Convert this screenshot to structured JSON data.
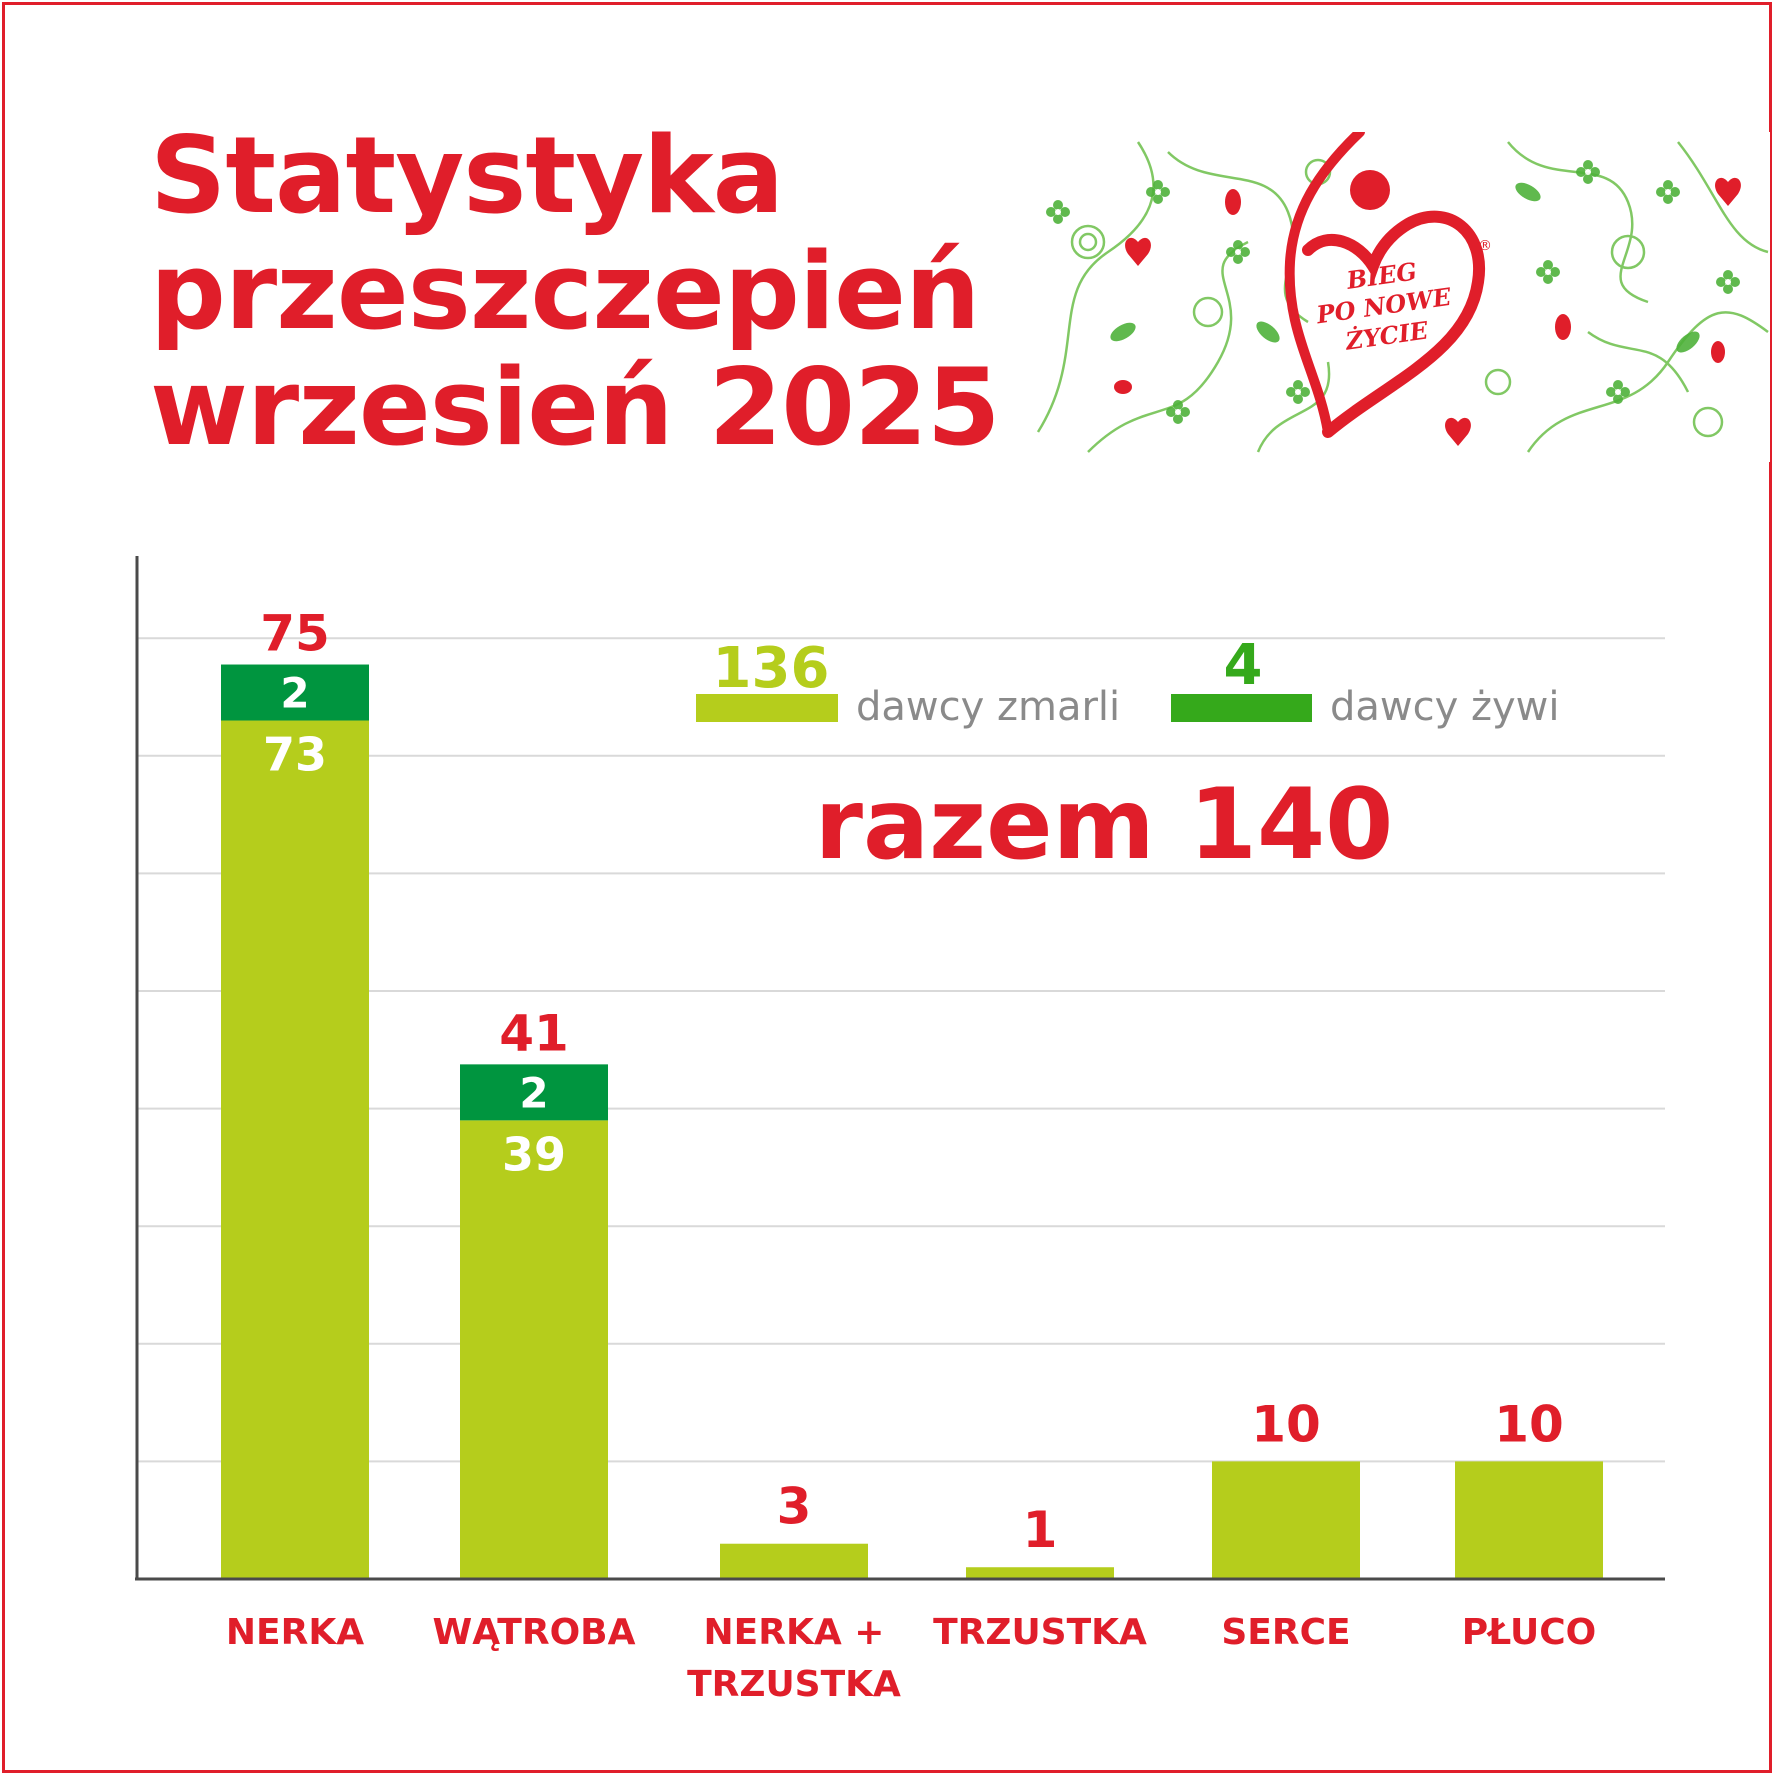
{
  "title": {
    "line1": "Statystyka",
    "line2": "przeszczepień",
    "line3": "wrzesień 2025"
  },
  "logo": {
    "line1": "BIEG",
    "line2": "PO NOWE",
    "line3": "ŻYCIE",
    "mark": "®"
  },
  "legend": {
    "deceased_count": "136",
    "deceased_label": "dawcy zmarli",
    "living_count": "4",
    "living_label": "dawcy żywi",
    "total": "razem 140"
  },
  "colors": {
    "accent": "#e01e2a",
    "deceased": "#b5cd1c",
    "living": "#00953f",
    "legend_living": "#35a91b",
    "label_gray": "#8a8a8a",
    "grid": "#d9d9d9",
    "axis": "#4a4a4a"
  },
  "chart_data": {
    "type": "bar",
    "stacked": true,
    "categories": [
      "NERKA",
      "WĄTROBA",
      "NERKA + TRZUSTKA",
      "TRZUSTKA",
      "SERCE",
      "PŁUCO"
    ],
    "category_lines": [
      [
        "NERKA"
      ],
      [
        "WĄTROBA"
      ],
      [
        "NERKA +",
        "TRZUSTKA"
      ],
      [
        "TRZUSTKA"
      ],
      [
        "SERCE"
      ],
      [
        "PŁUCO"
      ]
    ],
    "series": [
      {
        "name": "dawcy zmarli",
        "values": [
          73,
          39,
          3,
          1,
          10,
          10
        ]
      },
      {
        "name": "dawcy żywi",
        "values": [
          2,
          2,
          0,
          0,
          0,
          0
        ]
      }
    ],
    "totals": [
      75,
      41,
      3,
      1,
      10,
      10
    ],
    "ylim": [
      0,
      80
    ],
    "grid": true,
    "legend_position": "top-right"
  }
}
